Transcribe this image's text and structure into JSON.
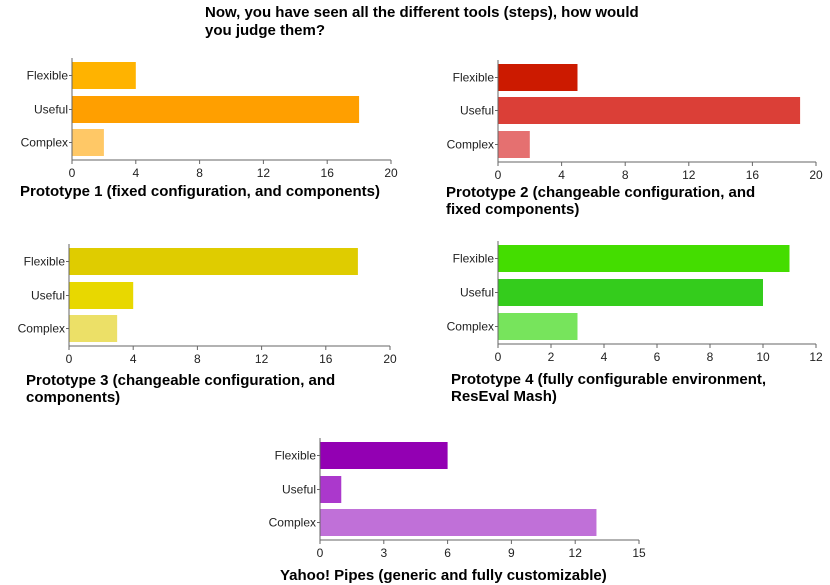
{
  "title": "Now, you have seen all the different tools (steps), how would you judge them?",
  "chart_data": [
    {
      "type": "bar",
      "orientation": "horizontal",
      "title": "Prototype 1 (fixed configuration, and components)",
      "categories": [
        "Flexible",
        "Useful",
        "Complex"
      ],
      "values": [
        4,
        18,
        2
      ],
      "colors": [
        "#ffb300",
        "#ff9f00",
        "#ffc866"
      ],
      "xlim": [
        0,
        20
      ],
      "xticks": [
        0,
        4,
        8,
        12,
        16,
        20
      ],
      "grid": false
    },
    {
      "type": "bar",
      "orientation": "horizontal",
      "title": "Prototype 2 (changeable configuration, and fixed components)",
      "categories": [
        "Flexible",
        "Useful",
        "Complex"
      ],
      "values": [
        5,
        19,
        2
      ],
      "colors": [
        "#cc1a00",
        "#db3f37",
        "#e57070"
      ],
      "xlim": [
        0,
        20
      ],
      "xticks": [
        0,
        4,
        8,
        12,
        16,
        20
      ],
      "grid": false
    },
    {
      "type": "bar",
      "orientation": "horizontal",
      "title": "Prototype 3 (changeable configuration, and components)",
      "categories": [
        "Flexible",
        "Useful",
        "Complex"
      ],
      "values": [
        18,
        4,
        3
      ],
      "colors": [
        "#dfcc00",
        "#e8d800",
        "#ece067"
      ],
      "xlim": [
        0,
        20
      ],
      "xticks": [
        0,
        4,
        8,
        12,
        16,
        20
      ],
      "grid": false
    },
    {
      "type": "bar",
      "orientation": "horizontal",
      "title": "Prototype 4 (fully configurable environment, ResEval Mash)",
      "categories": [
        "Flexible",
        "Useful",
        "Complex"
      ],
      "values": [
        11,
        10,
        3
      ],
      "colors": [
        "#44dd00",
        "#34cc1c",
        "#77e45c"
      ],
      "xlim": [
        0,
        12
      ],
      "xticks": [
        0,
        2,
        4,
        6,
        8,
        10,
        12
      ],
      "grid": false
    },
    {
      "type": "bar",
      "orientation": "horizontal",
      "title": "Yahoo! Pipes (generic and fully customizable)",
      "categories": [
        "Flexible",
        "Useful",
        "Complex"
      ],
      "values": [
        6,
        1,
        13
      ],
      "colors": [
        "#9300b3",
        "#ab38cc",
        "#c070d8"
      ],
      "xlim": [
        0,
        15
      ],
      "xticks": [
        0,
        3,
        6,
        9,
        12,
        15
      ],
      "grid": false
    }
  ]
}
